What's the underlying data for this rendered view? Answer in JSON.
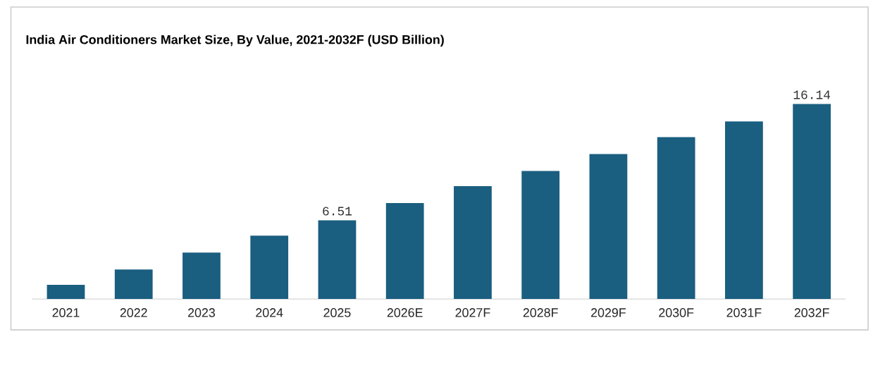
{
  "chart_data": {
    "type": "bar",
    "title": "India Air Conditioners Market Size, By Value, 2021-2032F (USD Billion)",
    "categories": [
      "2021",
      "2022",
      "2023",
      "2024",
      "2025",
      "2026E",
      "2027F",
      "2028F",
      "2029F",
      "2030F",
      "2031F",
      "2032F"
    ],
    "values": [
      1.17,
      2.45,
      3.85,
      5.25,
      6.51,
      7.95,
      9.35,
      10.6,
      12.0,
      13.4,
      14.7,
      16.14
    ],
    "value_labels": [
      null,
      null,
      null,
      null,
      "6.51",
      null,
      null,
      null,
      null,
      null,
      null,
      "16.14"
    ],
    "color": "#1a5e80",
    "tick_labels": "x"
  }
}
